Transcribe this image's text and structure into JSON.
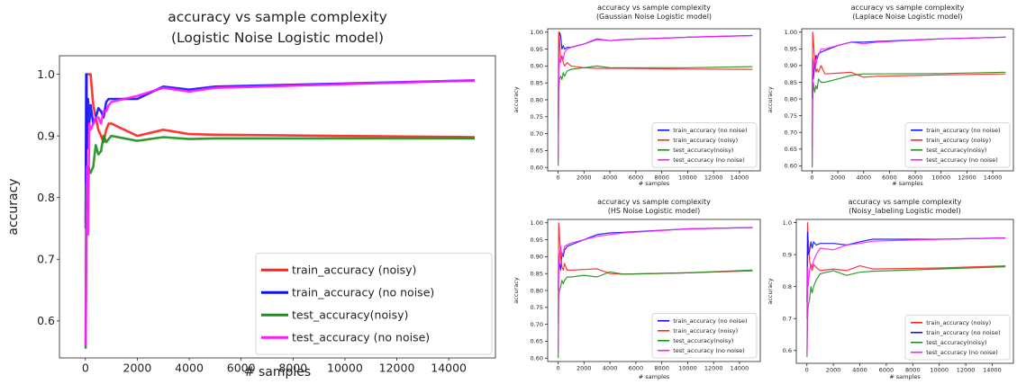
{
  "charts": [
    {
      "title": "accuracy vs sample complexity",
      "subtitle": "(Logistic Noise Logistic model)",
      "xlabel": "# samples",
      "ylabel": "accuracy"
    },
    {
      "title": "accuracy vs sample complexity",
      "subtitle": "(Gaussian Noise Logistic model)",
      "xlabel": "# samples",
      "ylabel": "accuracy"
    },
    {
      "title": "accuracy vs sample complexity",
      "subtitle": "(Laplace Noise Logistic model)",
      "xlabel": "# samples",
      "ylabel": "accuracy"
    },
    {
      "title": "accuracy vs sample complexity",
      "subtitle": "(HS Noise Logistic model)",
      "xlabel": "# samples",
      "ylabel": "accuracy"
    },
    {
      "title": "accuracy vs sample complexity",
      "subtitle": "(Noisy_labeling Logistic model)",
      "xlabel": "# samples",
      "ylabel": "accuracy"
    }
  ],
  "chart_data": [
    {
      "type": "line",
      "title": "accuracy vs sample complexity",
      "subtitle": "(Logistic Noise Logistic model)",
      "xlabel": "# samples",
      "ylabel": "accuracy",
      "xlim": [
        -1000,
        15800
      ],
      "ylim": [
        0.54,
        1.03
      ],
      "xticks": [
        0,
        2000,
        4000,
        6000,
        8000,
        10000,
        12000,
        14000
      ],
      "yticks": [
        0.6,
        0.7,
        0.8,
        0.9,
        1.0
      ],
      "ytick_labels": [
        "0.6",
        "0.7",
        "0.8",
        "0.9",
        "1.0"
      ],
      "legend_position": "lower-right",
      "series": [
        {
          "name": "train_accuracy (noisy)",
          "color": "#ff2020",
          "x": [
            10,
            50,
            100,
            200,
            300,
            400,
            500,
            600,
            700,
            800,
            900,
            1000,
            2000,
            3000,
            4000,
            5000,
            15000
          ],
          "y": [
            0.76,
            1.0,
            1.0,
            1.0,
            0.95,
            0.93,
            0.91,
            0.9,
            0.89,
            0.91,
            0.92,
            0.92,
            0.9,
            0.91,
            0.903,
            0.902,
            0.898
          ]
        },
        {
          "name": "train_accuracy (no noise)",
          "color": "#1010ff",
          "x": [
            10,
            30,
            60,
            100,
            150,
            200,
            300,
            400,
            500,
            600,
            700,
            800,
            900,
            1000,
            2000,
            3000,
            4000,
            5000,
            15000
          ],
          "y": [
            0.75,
            1.0,
            0.88,
            0.96,
            0.92,
            0.95,
            0.92,
            0.93,
            0.945,
            0.94,
            0.93,
            0.955,
            0.96,
            0.96,
            0.96,
            0.98,
            0.975,
            0.98,
            0.99
          ]
        },
        {
          "name": "test_accuracy(noisy)",
          "color": "#1a8f1a",
          "x": [
            10,
            30,
            60,
            100,
            200,
            300,
            400,
            500,
            600,
            700,
            800,
            900,
            1000,
            2000,
            3000,
            4000,
            5000,
            15000
          ],
          "y": [
            0.555,
            0.82,
            0.78,
            0.85,
            0.84,
            0.85,
            0.885,
            0.87,
            0.875,
            0.9,
            0.89,
            0.895,
            0.9,
            0.892,
            0.898,
            0.895,
            0.896,
            0.896
          ]
        },
        {
          "name": "test_accuracy (no noise)",
          "color": "#ff1aff",
          "x": [
            10,
            50,
            100,
            150,
            200,
            300,
            400,
            500,
            600,
            700,
            800,
            900,
            1000,
            2000,
            3000,
            4000,
            5000,
            15000
          ],
          "y": [
            0.56,
            0.85,
            0.74,
            0.92,
            0.91,
            0.92,
            0.93,
            0.93,
            0.92,
            0.94,
            0.94,
            0.95,
            0.955,
            0.965,
            0.978,
            0.972,
            0.978,
            0.99
          ]
        }
      ]
    },
    {
      "type": "line",
      "title": "accuracy vs sample complexity",
      "subtitle": "(Gaussian Noise Logistic model)",
      "xlabel": "# samples",
      "ylabel": "accuracy",
      "xlim": [
        -800,
        15600
      ],
      "ylim": [
        0.59,
        1.01
      ],
      "xticks": [
        0,
        2000,
        4000,
        6000,
        8000,
        10000,
        12000,
        14000
      ],
      "yticks": [
        0.6,
        0.65,
        0.7,
        0.75,
        0.8,
        0.85,
        0.9,
        0.95,
        1.0
      ],
      "ytick_labels": [
        "0.60",
        "0.65",
        "0.70",
        "0.75",
        "0.80",
        "0.85",
        "0.90",
        "0.95",
        "1.00"
      ],
      "legend_position": "lower-right",
      "series": [
        {
          "name": "train_accuracy (no noise)",
          "color": "#1010ff",
          "x": [
            10,
            50,
            100,
            200,
            300,
            400,
            500,
            700,
            1000,
            2000,
            3000,
            4000,
            5000,
            10000,
            15000
          ],
          "y": [
            0.75,
            0.95,
            1.0,
            0.99,
            0.95,
            0.96,
            0.95,
            0.955,
            0.955,
            0.965,
            0.98,
            0.975,
            0.978,
            0.985,
            0.99
          ]
        },
        {
          "name": "train_accuracy (noisy)",
          "color": "#ff2020",
          "x": [
            10,
            50,
            100,
            200,
            300,
            400,
            500,
            700,
            1000,
            2000,
            3000,
            4000,
            5000,
            10000,
            15000
          ],
          "y": [
            0.7,
            1.0,
            0.98,
            0.92,
            0.93,
            0.91,
            0.9,
            0.91,
            0.9,
            0.895,
            0.893,
            0.893,
            0.893,
            0.891,
            0.89
          ]
        },
        {
          "name": "test_accuracy(noisy)",
          "color": "#1a8f1a",
          "x": [
            10,
            50,
            100,
            200,
            300,
            400,
            500,
            700,
            1000,
            2000,
            3000,
            4000,
            5000,
            10000,
            15000
          ],
          "y": [
            0.605,
            0.82,
            0.86,
            0.87,
            0.86,
            0.88,
            0.87,
            0.885,
            0.89,
            0.895,
            0.9,
            0.895,
            0.895,
            0.895,
            0.898
          ]
        },
        {
          "name": "test_accuracy (no noise)",
          "color": "#ff1aff",
          "x": [
            10,
            50,
            100,
            200,
            300,
            400,
            500,
            700,
            1000,
            2000,
            3000,
            4000,
            5000,
            10000,
            15000
          ],
          "y": [
            0.62,
            0.88,
            0.92,
            0.91,
            0.93,
            0.92,
            0.94,
            0.95,
            0.955,
            0.965,
            0.978,
            0.975,
            0.978,
            0.985,
            0.99
          ]
        }
      ]
    },
    {
      "type": "line",
      "title": "accuracy vs sample complexity",
      "subtitle": "(Laplace Noise Logistic model)",
      "xlabel": "# samples",
      "ylabel": "accuracy",
      "xlim": [
        -800,
        15600
      ],
      "ylim": [
        0.585,
        1.01
      ],
      "xticks": [
        0,
        2000,
        4000,
        6000,
        8000,
        10000,
        12000,
        14000
      ],
      "yticks": [
        0.6,
        0.65,
        0.7,
        0.75,
        0.8,
        0.85,
        0.9,
        0.95,
        1.0
      ],
      "ytick_labels": [
        "0.60",
        "0.65",
        "0.70",
        "0.75",
        "0.80",
        "0.85",
        "0.90",
        "0.95",
        "1.00"
      ],
      "legend_position": "lower-right",
      "series": [
        {
          "name": "train_accuracy (no noise)",
          "color": "#1010ff",
          "x": [
            10,
            50,
            100,
            200,
            300,
            400,
            500,
            700,
            1000,
            2000,
            3000,
            4000,
            5000,
            10000,
            15000
          ],
          "y": [
            0.8,
            0.92,
            0.86,
            0.9,
            0.93,
            0.92,
            0.935,
            0.94,
            0.945,
            0.96,
            0.97,
            0.97,
            0.972,
            0.98,
            0.985
          ]
        },
        {
          "name": "train_accuracy (noisy)",
          "color": "#ff2020",
          "x": [
            10,
            50,
            100,
            200,
            300,
            400,
            500,
            700,
            1000,
            2000,
            3000,
            4000,
            5000,
            10000,
            15000
          ],
          "y": [
            0.65,
            1.0,
            0.98,
            0.92,
            0.88,
            0.89,
            0.88,
            0.9,
            0.875,
            0.877,
            0.88,
            0.865,
            0.868,
            0.872,
            0.875
          ]
        },
        {
          "name": "test_accuracy(noisy)",
          "color": "#1a8f1a",
          "x": [
            10,
            50,
            100,
            200,
            300,
            400,
            500,
            700,
            1000,
            2000,
            3000,
            4000,
            5000,
            10000,
            15000
          ],
          "y": [
            0.595,
            0.8,
            0.85,
            0.82,
            0.84,
            0.83,
            0.86,
            0.85,
            0.85,
            0.86,
            0.87,
            0.875,
            0.875,
            0.876,
            0.88
          ]
        },
        {
          "name": "test_accuracy (no noise)",
          "color": "#ff1aff",
          "x": [
            10,
            50,
            100,
            200,
            300,
            400,
            500,
            700,
            1000,
            2000,
            3000,
            4000,
            5000,
            10000,
            15000
          ],
          "y": [
            0.6,
            0.87,
            0.9,
            0.92,
            0.9,
            0.93,
            0.93,
            0.95,
            0.95,
            0.96,
            0.97,
            0.965,
            0.97,
            0.98,
            0.985
          ]
        }
      ]
    },
    {
      "type": "line",
      "title": "accuracy vs sample complexity",
      "subtitle": "(HS Noise Logistic model)",
      "xlabel": "# samples",
      "ylabel": "accuracy",
      "xlim": [
        -800,
        15600
      ],
      "ylim": [
        0.59,
        1.01
      ],
      "xticks": [
        0,
        2000,
        4000,
        6000,
        8000,
        10000,
        12000,
        14000
      ],
      "yticks": [
        0.6,
        0.65,
        0.7,
        0.75,
        0.8,
        0.85,
        0.9,
        0.95,
        1.0
      ],
      "ytick_labels": [
        "0.60",
        "0.65",
        "0.70",
        "0.75",
        "0.80",
        "0.85",
        "0.90",
        "0.95",
        "1.00"
      ],
      "legend_position": "lower-right",
      "series": [
        {
          "name": "train_accuracy (no noise)",
          "color": "#1010ff",
          "x": [
            10,
            50,
            100,
            200,
            300,
            400,
            500,
            700,
            1000,
            2000,
            3000,
            4000,
            5000,
            10000,
            15000
          ],
          "y": [
            0.8,
            0.9,
            0.88,
            0.86,
            0.91,
            0.9,
            0.92,
            0.93,
            0.935,
            0.95,
            0.965,
            0.97,
            0.972,
            0.982,
            0.986
          ]
        },
        {
          "name": "train_accuracy (noisy)",
          "color": "#ff2020",
          "x": [
            10,
            50,
            100,
            200,
            300,
            400,
            500,
            700,
            1000,
            2000,
            3000,
            4000,
            5000,
            10000,
            15000
          ],
          "y": [
            0.7,
            1.0,
            0.97,
            0.9,
            0.87,
            0.86,
            0.88,
            0.86,
            0.86,
            0.862,
            0.864,
            0.85,
            0.848,
            0.852,
            0.858
          ]
        },
        {
          "name": "test_accuracy(noisy)",
          "color": "#1a8f1a",
          "x": [
            10,
            50,
            100,
            200,
            300,
            400,
            500,
            700,
            1000,
            2000,
            3000,
            4000,
            5000,
            10000,
            15000
          ],
          "y": [
            0.6,
            0.78,
            0.8,
            0.81,
            0.83,
            0.82,
            0.83,
            0.84,
            0.84,
            0.845,
            0.84,
            0.855,
            0.848,
            0.852,
            0.86
          ]
        },
        {
          "name": "test_accuracy (no noise)",
          "color": "#ff1aff",
          "x": [
            10,
            50,
            100,
            200,
            300,
            400,
            500,
            700,
            1000,
            2000,
            3000,
            4000,
            5000,
            10000,
            15000
          ],
          "y": [
            0.62,
            0.85,
            0.9,
            0.93,
            0.9,
            0.91,
            0.93,
            0.935,
            0.94,
            0.95,
            0.96,
            0.965,
            0.97,
            0.982,
            0.986
          ]
        }
      ]
    },
    {
      "type": "line",
      "title": "accuracy vs sample complexity",
      "subtitle": "(Noisy_labeling Logistic model)",
      "xlabel": "# samples",
      "ylabel": "accuracy",
      "xlim": [
        -800,
        15600
      ],
      "ylim": [
        0.56,
        1.01
      ],
      "xticks": [
        0,
        2000,
        4000,
        6000,
        8000,
        10000,
        12000,
        14000
      ],
      "yticks": [
        0.6,
        0.7,
        0.8,
        0.9,
        1.0
      ],
      "ytick_labels": [
        "0.6",
        "0.7",
        "0.8",
        "0.9",
        "1.0"
      ],
      "legend_position": "lower-right",
      "series": [
        {
          "name": "train_accuracy (noisy)",
          "color": "#ff2020",
          "x": [
            10,
            50,
            100,
            200,
            300,
            400,
            500,
            700,
            1000,
            2000,
            3000,
            4000,
            5000,
            10000,
            15000
          ],
          "y": [
            0.7,
            1.0,
            0.95,
            0.88,
            0.86,
            0.85,
            0.87,
            0.86,
            0.85,
            0.855,
            0.85,
            0.865,
            0.855,
            0.858,
            0.865
          ]
        },
        {
          "name": "train_accuracy (no noise)",
          "color": "#1010ff",
          "x": [
            10,
            50,
            100,
            200,
            300,
            400,
            500,
            700,
            1000,
            2000,
            3000,
            4000,
            5000,
            10000,
            15000
          ],
          "y": [
            0.75,
            0.97,
            0.9,
            0.91,
            0.94,
            0.92,
            0.94,
            0.93,
            0.935,
            0.935,
            0.93,
            0.94,
            0.948,
            0.948,
            0.952
          ]
        },
        {
          "name": "test_accuracy(noisy)",
          "color": "#1a8f1a",
          "x": [
            10,
            50,
            100,
            200,
            300,
            400,
            500,
            700,
            1000,
            2000,
            3000,
            4000,
            5000,
            10000,
            15000
          ],
          "y": [
            0.58,
            0.7,
            0.74,
            0.76,
            0.8,
            0.78,
            0.8,
            0.82,
            0.84,
            0.85,
            0.835,
            0.845,
            0.848,
            0.855,
            0.862
          ]
        },
        {
          "name": "test_accuracy (no noise)",
          "color": "#ff1aff",
          "x": [
            10,
            50,
            100,
            200,
            300,
            400,
            500,
            700,
            1000,
            2000,
            3000,
            4000,
            5000,
            10000,
            15000
          ],
          "y": [
            0.59,
            0.86,
            0.8,
            0.85,
            0.87,
            0.86,
            0.88,
            0.9,
            0.92,
            0.915,
            0.93,
            0.935,
            0.942,
            0.948,
            0.952
          ]
        }
      ]
    }
  ]
}
